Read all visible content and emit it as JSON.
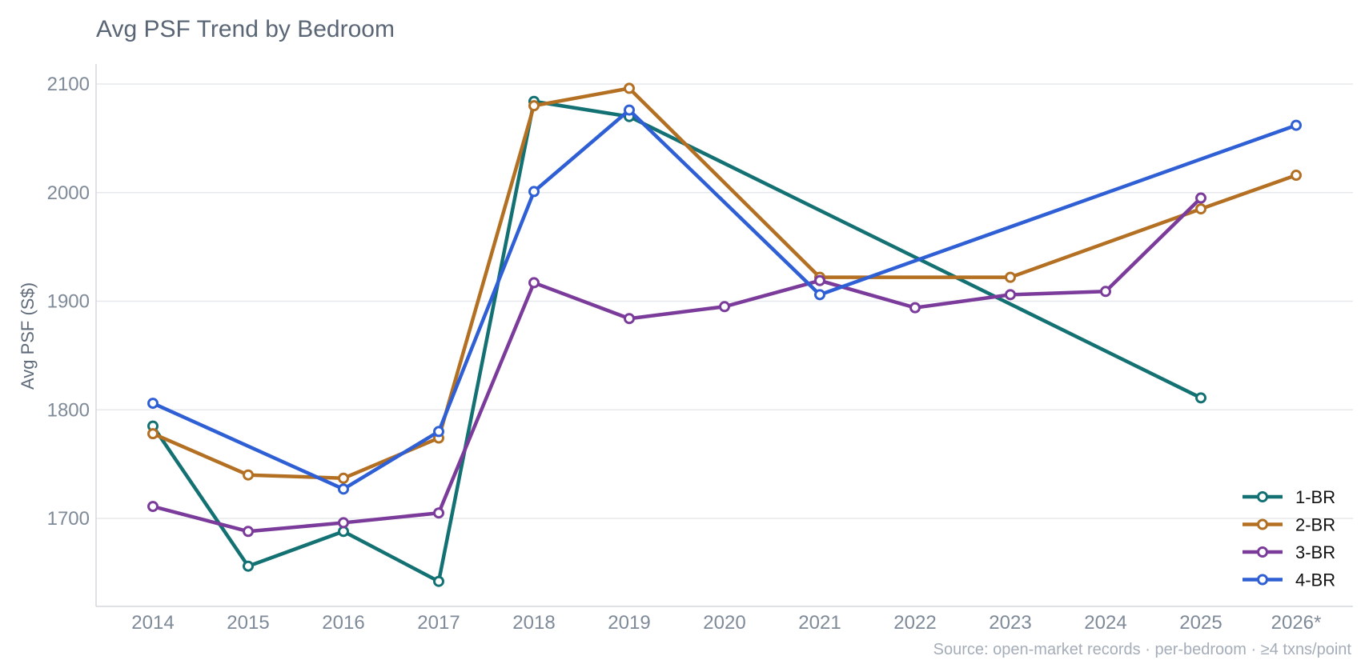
{
  "chart_data": {
    "type": "line",
    "title": "Avg PSF Trend by Bedroom",
    "xlabel": "",
    "ylabel": "Avg PSF (S$)",
    "categories": [
      "2014",
      "2015",
      "2016",
      "2017",
      "2018",
      "2019",
      "2020",
      "2021",
      "2022",
      "2023",
      "2024",
      "2025",
      "2026*"
    ],
    "yticks": [
      1700,
      1800,
      1900,
      2000,
      2100
    ],
    "ylim": [
      1620,
      2120
    ],
    "grid": true,
    "legend_position": "bottom-right",
    "source": "Source: open-market records · per-bedroom · ≥4 txns/point",
    "series": [
      {
        "name": "1-BR",
        "color": "#137173",
        "points": [
          [
            "2014",
            1785
          ],
          [
            "2015",
            1656
          ],
          [
            "2016",
            1688
          ],
          [
            "2017",
            1642
          ],
          [
            "2018",
            2084
          ],
          [
            "2019",
            2070
          ],
          [
            "2025",
            1811
          ]
        ]
      },
      {
        "name": "2-BR",
        "color": "#b36f22",
        "points": [
          [
            "2014",
            1778
          ],
          [
            "2015",
            1740
          ],
          [
            "2016",
            1737
          ],
          [
            "2017",
            1774
          ],
          [
            "2018",
            2080
          ],
          [
            "2019",
            2096
          ],
          [
            "2021",
            1922
          ],
          [
            "2023",
            1922
          ],
          [
            "2025",
            1985
          ],
          [
            "2026*",
            2016
          ]
        ]
      },
      {
        "name": "3-BR",
        "color": "#7b3b9a",
        "points": [
          [
            "2014",
            1711
          ],
          [
            "2015",
            1688
          ],
          [
            "2016",
            1696
          ],
          [
            "2017",
            1705
          ],
          [
            "2018",
            1917
          ],
          [
            "2019",
            1884
          ],
          [
            "2020",
            1895
          ],
          [
            "2021",
            1919
          ],
          [
            "2022",
            1894
          ],
          [
            "2023",
            1906
          ],
          [
            "2024",
            1909
          ],
          [
            "2025",
            1995
          ]
        ]
      },
      {
        "name": "4-BR",
        "color": "#2f5fd4",
        "points": [
          [
            "2014",
            1806
          ],
          [
            "2016",
            1727
          ],
          [
            "2017",
            1780
          ],
          [
            "2018",
            2001
          ],
          [
            "2019",
            2076
          ],
          [
            "2021",
            1906
          ],
          [
            "2026*",
            2062
          ]
        ]
      }
    ]
  }
}
